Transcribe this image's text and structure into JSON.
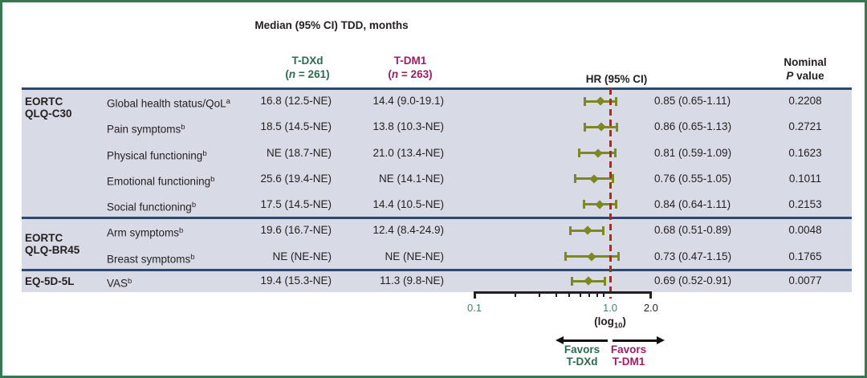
{
  "title": "Median (95% CI) TDD, months",
  "header": {
    "tdxd_label": "T-DXd",
    "tdxd_n_open": "(",
    "tdxd_n_var": "n",
    "tdxd_n_rest": " = 261)",
    "tdm1_label": "T-DM1",
    "tdm1_n_open": "(",
    "tdm1_n_var": "n",
    "tdm1_n_rest": " = 263)",
    "hr_label": "HR (95% CI)",
    "p_label_line1": "Nominal",
    "p_label_italic": "P",
    "p_label_rest": " value"
  },
  "colors": {
    "frame_green": "#367852",
    "tdxd_green": "#2a6b4f",
    "tdm1_maroon": "#9b1d63",
    "navy_line": "#2a4a70",
    "band_background": "#d8dbe6",
    "marker_olive": "#7d8822",
    "reference_red": "#bb2418",
    "text_black": "#231f20",
    "tick_green": "#45806a"
  },
  "chart_data": {
    "type": "forest",
    "title": "Median (95% CI) TDD, months",
    "x_axis": {
      "scale": "log10",
      "min": 0.1,
      "max": 2.0,
      "reference_line": 1.0,
      "ticks": [
        0.1,
        0.2,
        0.3,
        0.4,
        0.5,
        0.6,
        0.7,
        0.8,
        0.9,
        1.0,
        2.0
      ],
      "tick_labels": [
        {
          "text": "0.1",
          "value": 0.1,
          "color": "#45806a"
        },
        {
          "text": "1.0",
          "value": 1.0,
          "color": "#45806a"
        },
        {
          "text": "2.0",
          "value": 2.0,
          "color": "#231f20"
        }
      ],
      "label_parts": [
        "(log",
        "10",
        ")"
      ]
    },
    "groups": [
      {
        "instrument_lines": [
          "EORTC",
          "QLQ-C30"
        ],
        "rows": [
          {
            "scale": "Global health status/QoL",
            "footnote": "a",
            "tdxd_median": "16.8 (12.5-NE)",
            "tdm1_median": "14.4 (9.0-19.1)",
            "hr_label": "0.85 (0.65-1.11)",
            "hr": 0.85,
            "ci_low": 0.65,
            "ci_high": 1.11,
            "p_value": "0.2208"
          },
          {
            "scale": "Pain symptoms",
            "footnote": "b",
            "tdxd_median": "18.5 (14.5-NE)",
            "tdm1_median": "13.8 (10.3-NE)",
            "hr_label": "0.86 (0.65-1.13)",
            "hr": 0.86,
            "ci_low": 0.65,
            "ci_high": 1.13,
            "p_value": "0.2721"
          },
          {
            "scale": "Physical functioning",
            "footnote": "b",
            "tdxd_median": "NE (18.7-NE)",
            "tdm1_median": "21.0 (13.4-NE)",
            "hr_label": "0.81 (0.59-1.09)",
            "hr": 0.81,
            "ci_low": 0.59,
            "ci_high": 1.09,
            "p_value": "0.1623"
          },
          {
            "scale": "Emotional functioning",
            "footnote": "b",
            "tdxd_median": "25.6 (19.4-NE)",
            "tdm1_median": "NE (14.1-NE)",
            "hr_label": "0.76 (0.55-1.05)",
            "hr": 0.76,
            "ci_low": 0.55,
            "ci_high": 1.05,
            "p_value": "0.1011"
          },
          {
            "scale": "Social functioning",
            "footnote": "b",
            "tdxd_median": "17.5 (14.5-NE)",
            "tdm1_median": "14.4 (10.5-NE)",
            "hr_label": "0.84 (0.64-1.11)",
            "hr": 0.84,
            "ci_low": 0.64,
            "ci_high": 1.11,
            "p_value": "0.2153"
          }
        ]
      },
      {
        "instrument_lines": [
          "EORTC",
          "QLQ-BR45"
        ],
        "rows": [
          {
            "scale": "Arm symptoms",
            "footnote": "b",
            "tdxd_median": "19.6 (16.7-NE)",
            "tdm1_median": "12.4 (8.4-24.9)",
            "hr_label": "0.68 (0.51-0.89)",
            "hr": 0.68,
            "ci_low": 0.51,
            "ci_high": 0.89,
            "p_value": "0.0048"
          },
          {
            "scale": "Breast symptoms",
            "footnote": "b",
            "tdxd_median": "NE (NE-NE)",
            "tdm1_median": "NE (NE-NE)",
            "hr_label": "0.73 (0.47-1.15)",
            "hr": 0.73,
            "ci_low": 0.47,
            "ci_high": 1.15,
            "p_value": "0.1765"
          }
        ]
      },
      {
        "instrument_lines": [
          "EQ-5D-5L"
        ],
        "rows": [
          {
            "scale": "VAS",
            "footnote": "b",
            "tdxd_median": "19.4 (15.3-NE)",
            "tdm1_median": "11.3 (9.8-NE)",
            "hr_label": "0.69 (0.52-0.91)",
            "hr": 0.69,
            "ci_low": 0.52,
            "ci_high": 0.91,
            "p_value": "0.0077"
          }
        ]
      }
    ],
    "favors_left": {
      "line1": "Favors",
      "line2": "T-DXd"
    },
    "favors_right": {
      "line1": "Favors",
      "line2": "T-DM1"
    }
  }
}
